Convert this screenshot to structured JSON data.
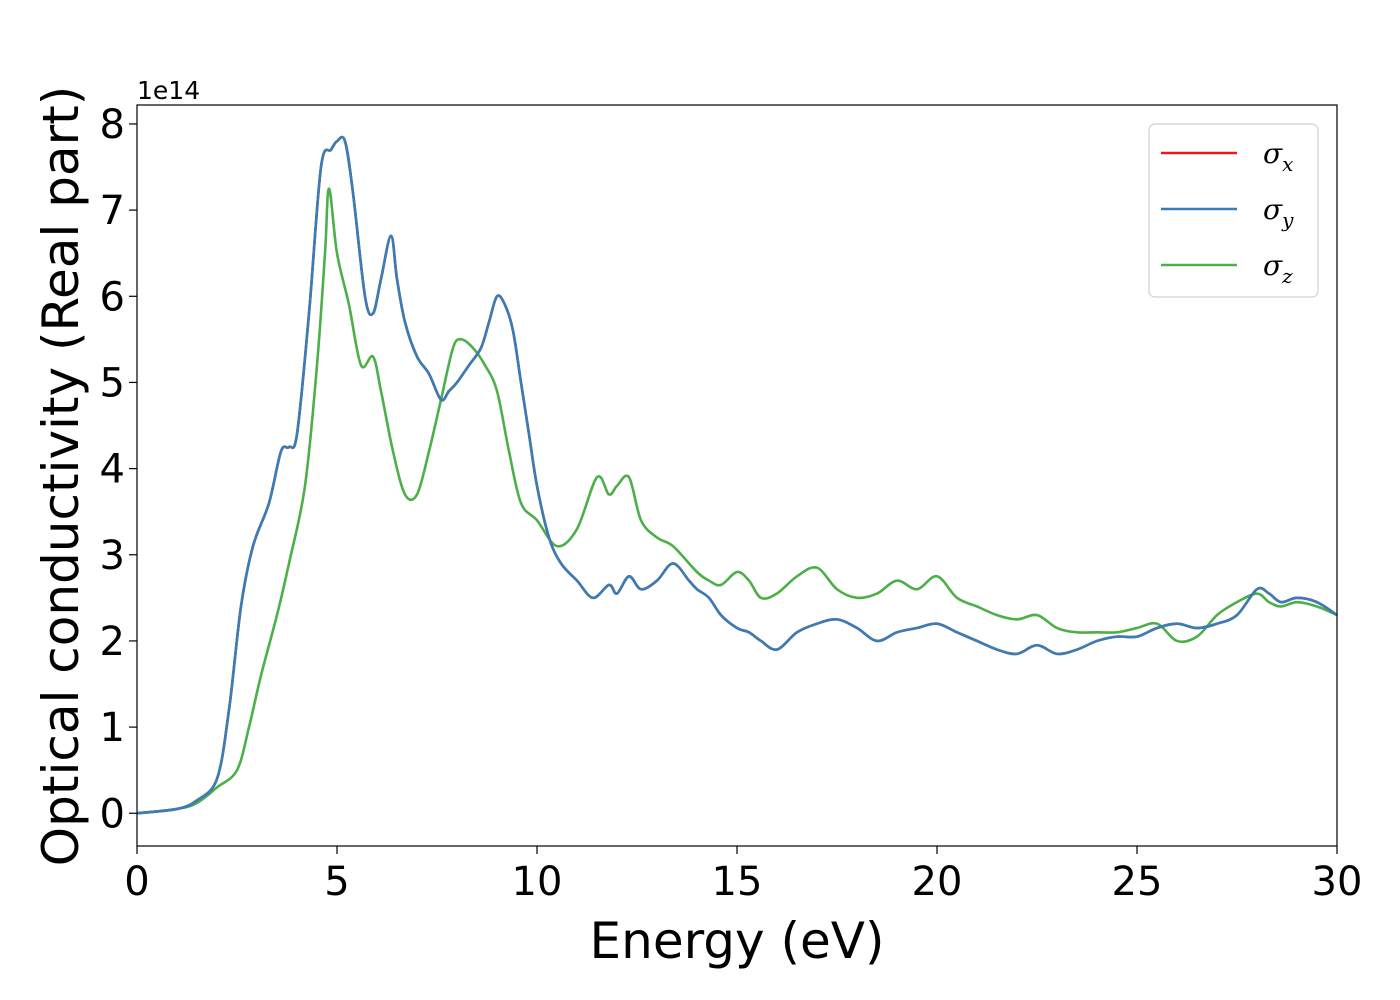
{
  "chart_data": {
    "type": "line",
    "xlabel": "Energy (eV)",
    "ylabel": "Optical conductivity (Real part)",
    "y_offset_label": "1e14",
    "xlim": [
      0,
      30
    ],
    "ylim": [
      -0.38,
      8.22
    ],
    "x_ticks": [
      0,
      5,
      10,
      15,
      20,
      25,
      30
    ],
    "y_ticks": [
      0,
      1,
      2,
      3,
      4,
      5,
      6,
      7,
      8
    ],
    "grid": false,
    "legend_position": "top-right",
    "series": [
      {
        "name": "σx",
        "symbol": "σ",
        "subscript": "x",
        "color": "#e41a1c",
        "x": [
          0,
          1,
          1.5,
          2,
          2.3,
          2.6,
          2.9,
          3.3,
          3.6,
          3.8,
          4.0,
          4.3,
          4.6,
          4.85,
          5.0,
          5.2,
          5.4,
          5.7,
          5.9,
          6.1,
          6.35,
          6.5,
          6.7,
          7.0,
          7.3,
          7.6,
          7.8,
          8.0,
          8.3,
          8.6,
          8.8,
          9.0,
          9.2,
          9.4,
          9.6,
          9.8,
          10.0,
          10.3,
          10.6,
          11.0,
          11.4,
          11.8,
          12.0,
          12.3,
          12.6,
          13.0,
          13.4,
          13.8,
          14.0,
          14.3,
          14.6,
          15.0,
          15.3,
          15.6,
          16.0,
          16.5,
          17.0,
          17.5,
          18.0,
          18.5,
          19.0,
          19.5,
          20.0,
          20.5,
          21.0,
          21.5,
          22.0,
          22.5,
          23.0,
          23.5,
          24.0,
          24.5,
          25.0,
          25.5,
          26.0,
          26.5,
          27.0,
          27.5,
          28.0,
          28.3,
          28.6,
          29.0,
          29.5,
          30.0
        ],
        "values": [
          0,
          0.05,
          0.15,
          0.4,
          1.2,
          2.4,
          3.1,
          3.6,
          4.2,
          4.25,
          4.4,
          5.8,
          7.5,
          7.7,
          7.8,
          7.8,
          7.2,
          6.0,
          5.8,
          6.2,
          6.7,
          6.2,
          5.7,
          5.3,
          5.1,
          4.8,
          4.9,
          5.0,
          5.2,
          5.4,
          5.7,
          6.0,
          5.9,
          5.6,
          5.0,
          4.4,
          3.8,
          3.2,
          2.9,
          2.7,
          2.5,
          2.65,
          2.55,
          2.75,
          2.6,
          2.7,
          2.9,
          2.7,
          2.6,
          2.5,
          2.3,
          2.15,
          2.1,
          2.0,
          1.9,
          2.1,
          2.2,
          2.25,
          2.15,
          2.0,
          2.1,
          2.15,
          2.2,
          2.1,
          2.0,
          1.9,
          1.85,
          1.95,
          1.85,
          1.9,
          2.0,
          2.05,
          2.05,
          2.15,
          2.2,
          2.15,
          2.2,
          2.3,
          2.6,
          2.55,
          2.45,
          2.5,
          2.45,
          2.3
        ]
      },
      {
        "name": "σy",
        "symbol": "σ",
        "subscript": "y",
        "color": "#377eb8",
        "x": [
          0,
          1,
          1.5,
          2,
          2.3,
          2.6,
          2.9,
          3.3,
          3.6,
          3.8,
          4.0,
          4.3,
          4.6,
          4.85,
          5.0,
          5.2,
          5.4,
          5.7,
          5.9,
          6.1,
          6.35,
          6.5,
          6.7,
          7.0,
          7.3,
          7.6,
          7.8,
          8.0,
          8.3,
          8.6,
          8.8,
          9.0,
          9.2,
          9.4,
          9.6,
          9.8,
          10.0,
          10.3,
          10.6,
          11.0,
          11.4,
          11.8,
          12.0,
          12.3,
          12.6,
          13.0,
          13.4,
          13.8,
          14.0,
          14.3,
          14.6,
          15.0,
          15.3,
          15.6,
          16.0,
          16.5,
          17.0,
          17.5,
          18.0,
          18.5,
          19.0,
          19.5,
          20.0,
          20.5,
          21.0,
          21.5,
          22.0,
          22.5,
          23.0,
          23.5,
          24.0,
          24.5,
          25.0,
          25.5,
          26.0,
          26.5,
          27.0,
          27.5,
          28.0,
          28.3,
          28.6,
          29.0,
          29.5,
          30.0
        ],
        "values": [
          0,
          0.05,
          0.15,
          0.4,
          1.2,
          2.4,
          3.1,
          3.6,
          4.2,
          4.25,
          4.4,
          5.8,
          7.5,
          7.7,
          7.8,
          7.8,
          7.2,
          6.0,
          5.8,
          6.2,
          6.7,
          6.2,
          5.7,
          5.3,
          5.1,
          4.8,
          4.9,
          5.0,
          5.2,
          5.4,
          5.7,
          6.0,
          5.9,
          5.6,
          5.0,
          4.4,
          3.8,
          3.2,
          2.9,
          2.7,
          2.5,
          2.65,
          2.55,
          2.75,
          2.6,
          2.7,
          2.9,
          2.7,
          2.6,
          2.5,
          2.3,
          2.15,
          2.1,
          2.0,
          1.9,
          2.1,
          2.2,
          2.25,
          2.15,
          2.0,
          2.1,
          2.15,
          2.2,
          2.1,
          2.0,
          1.9,
          1.85,
          1.95,
          1.85,
          1.9,
          2.0,
          2.05,
          2.05,
          2.15,
          2.2,
          2.15,
          2.2,
          2.3,
          2.6,
          2.55,
          2.45,
          2.5,
          2.45,
          2.3
        ]
      },
      {
        "name": "σz",
        "symbol": "σ",
        "subscript": "z",
        "color": "#4daf4a",
        "x": [
          0,
          1,
          1.5,
          2,
          2.5,
          2.8,
          3.1,
          3.5,
          3.8,
          4.2,
          4.5,
          4.7,
          4.8,
          5.0,
          5.3,
          5.6,
          5.9,
          6.1,
          6.4,
          6.7,
          7.0,
          7.3,
          7.6,
          7.9,
          8.1,
          8.4,
          8.7,
          9.0,
          9.3,
          9.6,
          10.0,
          10.5,
          11.0,
          11.5,
          11.8,
          12.0,
          12.3,
          12.6,
          13.0,
          13.4,
          14.0,
          14.3,
          14.6,
          15.0,
          15.3,
          15.6,
          16.0,
          16.5,
          17.0,
          17.5,
          18.0,
          18.5,
          19.0,
          19.5,
          20.0,
          20.5,
          21.0,
          21.5,
          22.0,
          22.5,
          23.0,
          23.5,
          24.0,
          24.5,
          25.0,
          25.5,
          26.0,
          26.5,
          27.0,
          27.5,
          28.0,
          28.3,
          28.6,
          29.0,
          29.5,
          30.0
        ],
        "values": [
          0,
          0.05,
          0.12,
          0.3,
          0.5,
          1.0,
          1.6,
          2.3,
          2.9,
          3.8,
          5.2,
          6.5,
          7.25,
          6.5,
          5.9,
          5.2,
          5.3,
          4.9,
          4.2,
          3.7,
          3.7,
          4.2,
          4.8,
          5.4,
          5.5,
          5.4,
          5.2,
          4.9,
          4.2,
          3.6,
          3.4,
          3.1,
          3.3,
          3.9,
          3.7,
          3.8,
          3.9,
          3.4,
          3.2,
          3.1,
          2.8,
          2.7,
          2.65,
          2.8,
          2.7,
          2.5,
          2.55,
          2.75,
          2.85,
          2.6,
          2.5,
          2.55,
          2.7,
          2.6,
          2.75,
          2.5,
          2.4,
          2.3,
          2.25,
          2.3,
          2.15,
          2.1,
          2.1,
          2.1,
          2.15,
          2.2,
          2.0,
          2.05,
          2.3,
          2.45,
          2.55,
          2.45,
          2.4,
          2.45,
          2.4,
          2.3
        ]
      }
    ]
  }
}
